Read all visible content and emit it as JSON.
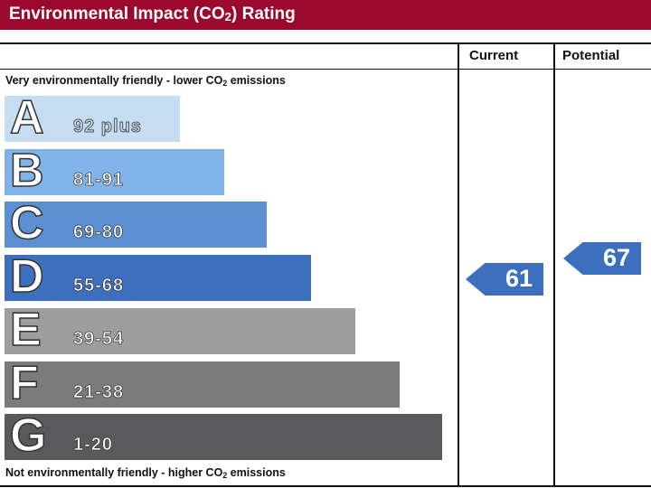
{
  "chart_data": {
    "type": "bar",
    "title": "Environmental Impact (CO2) Rating",
    "columns": [
      "Current",
      "Potential"
    ],
    "top_note": "Very environmentally friendly - lower CO2 emissions",
    "bottom_note": "Not environmentally friendly - higher CO2 emissions",
    "bands": [
      {
        "letter": "A",
        "range": "92 plus",
        "color": "#c6dcf2"
      },
      {
        "letter": "B",
        "range": "81-91",
        "color": "#80b4e8"
      },
      {
        "letter": "C",
        "range": "69-80",
        "color": "#5b8fd1"
      },
      {
        "letter": "D",
        "range": "55-68",
        "color": "#3d6fbf"
      },
      {
        "letter": "E",
        "range": "39-54",
        "color": "#9e9e9f"
      },
      {
        "letter": "F",
        "range": "21-38",
        "color": "#7a7b7a"
      },
      {
        "letter": "G",
        "range": "1-20",
        "color": "#5a595b"
      }
    ],
    "current": {
      "value": "61",
      "band": "D"
    },
    "potential": {
      "value": "67",
      "band": "D"
    }
  }
}
